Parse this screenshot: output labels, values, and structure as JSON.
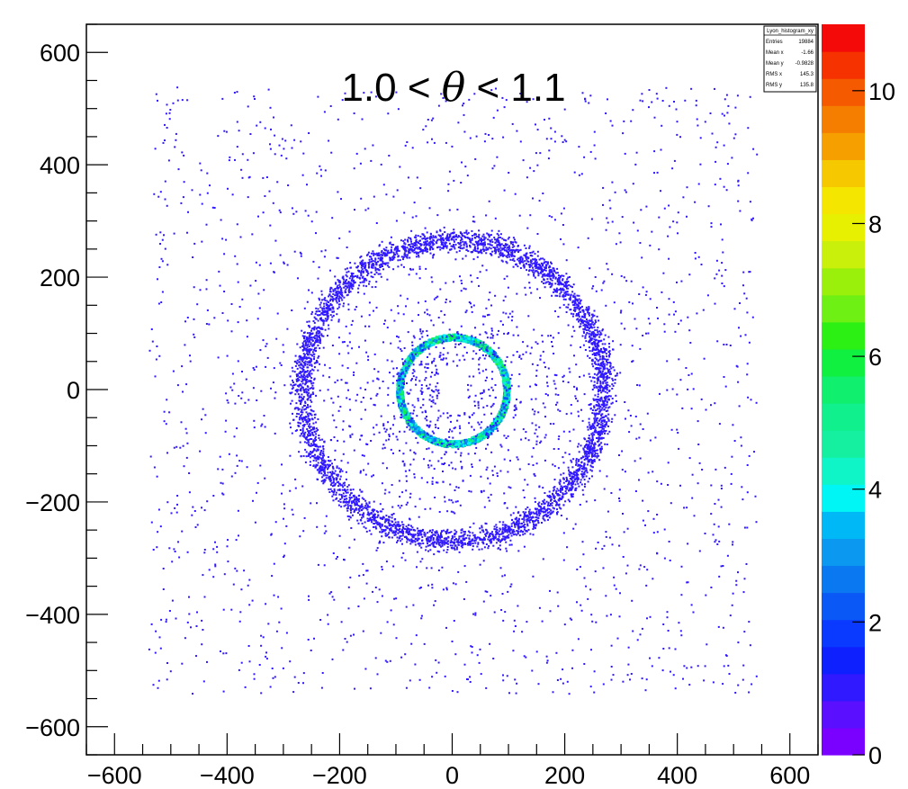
{
  "chart_data": {
    "type": "heatmap",
    "title_parts": [
      "1.0 < ",
      "θ",
      " < 1.1"
    ],
    "xlabel": "",
    "ylabel": "",
    "xlim": [
      -650,
      650
    ],
    "ylim": [
      -650,
      650
    ],
    "x_ticks": [
      -600,
      -400,
      -200,
      0,
      200,
      400,
      600
    ],
    "y_ticks": [
      -600,
      -400,
      -200,
      0,
      200,
      400,
      600
    ],
    "x_tick_labels": [
      "−600",
      "−400",
      "−200",
      "0",
      "200",
      "400",
      "600"
    ],
    "y_tick_labels": [
      "−600",
      "−400",
      "−200",
      "0",
      "200",
      "400",
      "600"
    ],
    "z_range": [
      0,
      11
    ],
    "z_ticks": [
      0,
      2,
      4,
      6,
      8,
      10
    ],
    "z_tick_labels": [
      "0",
      "2",
      "4",
      "6",
      "8",
      "10"
    ],
    "colz_palette": [
      "#7a00ff",
      "#5a10ff",
      "#3018ff",
      "#0f20ff",
      "#0a3aff",
      "#0a58f5",
      "#0a78f0",
      "#0a98f0",
      "#00b8f5",
      "#00f5f5",
      "#10f5c8",
      "#14f0a0",
      "#10f08c",
      "#10f06e",
      "#10f040",
      "#2cf014",
      "#6ef014",
      "#9af00a",
      "#c8f00a",
      "#e6f000",
      "#f5e600",
      "#f5c800",
      "#f5a000",
      "#f57d00",
      "#f55a00",
      "#f53200",
      "#f50a0a"
    ],
    "structures": [
      {
        "name": "inner-ring",
        "center": [
          0,
          0
        ],
        "radius": 95,
        "width": 10,
        "content_range": [
          2,
          6
        ]
      },
      {
        "name": "outer-ring",
        "center": [
          0,
          0
        ],
        "radius": 268,
        "width": 35,
        "content_range": [
          1,
          1
        ]
      },
      {
        "name": "diffuse-background",
        "extent": [
          -540,
          540
        ],
        "content_range": [
          1,
          1
        ]
      }
    ],
    "stats_box": {
      "title": "Lyon_histogram_xy",
      "entries": [
        {
          "label": "Entries",
          "value": "19884"
        },
        {
          "label": "Mean x",
          "value": "-1.66"
        },
        {
          "label": "Mean y",
          "value": "-0.9828"
        },
        {
          "label": "RMS x",
          "value": "145.3"
        },
        {
          "label": "RMS y",
          "value": "135.8"
        }
      ]
    },
    "grid": false,
    "legend": "none"
  }
}
